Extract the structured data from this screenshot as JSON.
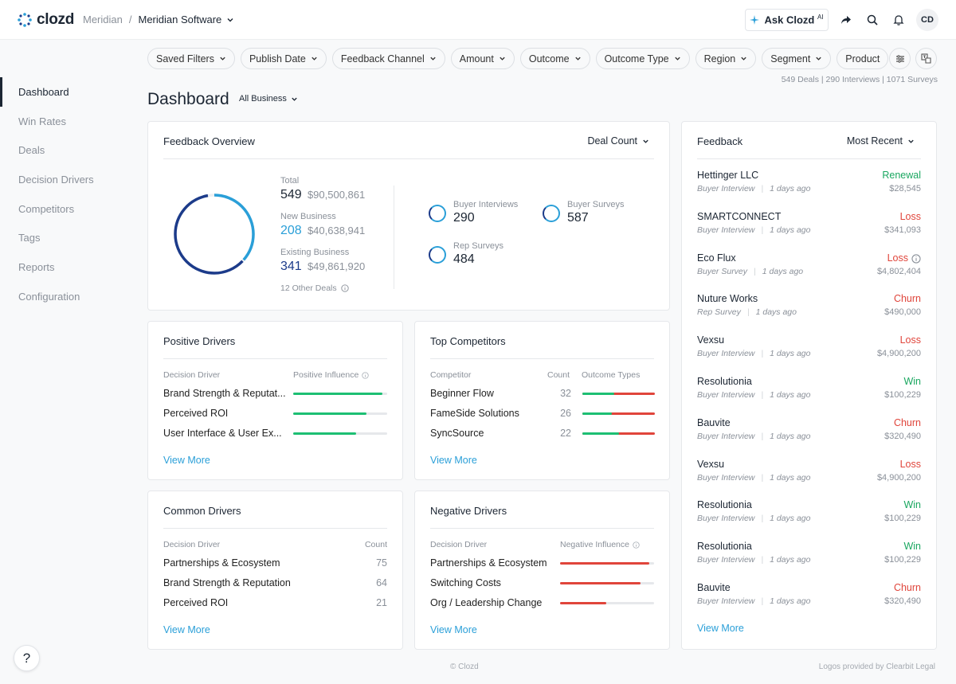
{
  "app": {
    "logo_text": "clozd",
    "breadcrumb_parent": "Meridian",
    "breadcrumb_separator": "/",
    "breadcrumb_current": "Meridian Software",
    "ask_label": "Ask Clozd",
    "ask_badge": "AI",
    "avatar_initials": "CD"
  },
  "sidebar": {
    "items": [
      {
        "label": "Dashboard"
      },
      {
        "label": "Win Rates"
      },
      {
        "label": "Deals"
      },
      {
        "label": "Decision Drivers"
      },
      {
        "label": "Competitors"
      },
      {
        "label": "Tags"
      },
      {
        "label": "Reports"
      },
      {
        "label": "Configuration"
      }
    ]
  },
  "filters": [
    "Saved Filters",
    "Publish Date",
    "Feedback Channel",
    "Amount",
    "Outcome",
    "Outcome Type",
    "Region",
    "Segment",
    "Product"
  ],
  "counts_text": "549 Deals | 290 Interviews | 1071 Surveys",
  "page": {
    "title": "Dashboard",
    "scope": "All Business"
  },
  "overview": {
    "title": "Feedback Overview",
    "metric": "Deal Count",
    "total_label": "Total",
    "total_count": "549",
    "total_amount": "$90,500,861",
    "new_label": "New Business",
    "new_count": "208",
    "new_amount": "$40,638,941",
    "existing_label": "Existing Business",
    "existing_count": "341",
    "existing_amount": "$49,861,920",
    "other": "12 Other Deals",
    "donut": {
      "new_business": 208,
      "existing_business": 341,
      "other": 12
    },
    "channels": [
      {
        "label": "Buyer Interviews",
        "value": "290"
      },
      {
        "label": "Buyer Surveys",
        "value": "587"
      },
      {
        "label": "Rep Surveys",
        "value": "484"
      }
    ]
  },
  "positive": {
    "title": "Positive Drivers",
    "col1": "Decision Driver",
    "col2": "Positive Influence",
    "view_more": "View More",
    "rows": [
      {
        "label": "Brand Strength & Reputat...",
        "fill": 0.95
      },
      {
        "label": "Perceived ROI",
        "fill": 0.78
      },
      {
        "label": "User Interface & User Ex...",
        "fill": 0.67
      }
    ]
  },
  "competitors": {
    "title": "Top Competitors",
    "col1": "Competitor",
    "col2": "Count",
    "col3": "Outcome Types",
    "view_more": "View More",
    "rows": [
      {
        "label": "Beginner Flow",
        "count": "32",
        "win": 0.44
      },
      {
        "label": "FameSide Solutions",
        "count": "26",
        "win": 0.41
      },
      {
        "label": "SyncSource",
        "count": "22",
        "win": 0.5
      }
    ]
  },
  "common": {
    "title": "Common Drivers",
    "col1": "Decision Driver",
    "col2": "Count",
    "view_more": "View More",
    "rows": [
      {
        "label": "Partnerships & Ecosystem",
        "count": "75"
      },
      {
        "label": "Brand Strength & Reputation",
        "count": "64"
      },
      {
        "label": "Perceived ROI",
        "count": "21"
      }
    ]
  },
  "negative": {
    "title": "Negative Drivers",
    "col1": "Decision Driver",
    "col2": "Negative Influence",
    "view_more": "View More",
    "rows": [
      {
        "label": "Partnerships & Ecosystem",
        "fill": 0.95
      },
      {
        "label": "Switching Costs",
        "fill": 0.86
      },
      {
        "label": "Org / Leadership Change",
        "fill": 0.49
      }
    ]
  },
  "feedback": {
    "title": "Feedback",
    "sort": "Most Recent",
    "view_more": "View More",
    "items": [
      {
        "name": "Hettinger LLC",
        "type": "Buyer Interview",
        "age": "1 days ago",
        "outcome": "Renewal",
        "amount": "$28,545",
        "color": "#1aa760"
      },
      {
        "name": "SMARTCONNECT",
        "type": "Buyer Interview",
        "age": "1 days ago",
        "outcome": "Loss",
        "amount": "$341,093",
        "color": "#e0453b"
      },
      {
        "name": "Eco Flux",
        "type": "Buyer Survey",
        "age": "1 days ago",
        "outcome": "Loss",
        "amount": "$4,802,404",
        "color": "#e0453b"
      },
      {
        "name": "Nuture Works",
        "type": "Rep Survey",
        "age": "1 days ago",
        "outcome": "Churn",
        "amount": "$490,000",
        "color": "#e0453b"
      },
      {
        "name": "Vexsu",
        "type": "Buyer Interview",
        "age": "1 days ago",
        "outcome": "Loss",
        "amount": "$4,900,200",
        "color": "#e0453b"
      },
      {
        "name": "Resolutionia",
        "type": "Buyer Interview",
        "age": "1 days ago",
        "outcome": "Win",
        "amount": "$100,229",
        "color": "#1aa760"
      },
      {
        "name": "Bauvite",
        "type": "Buyer Interview",
        "age": "1 days ago",
        "outcome": "Churn",
        "amount": "$320,490",
        "color": "#e0453b"
      },
      {
        "name": "Vexsu",
        "type": "Buyer Interview",
        "age": "1 days ago",
        "outcome": "Loss",
        "amount": "$4,900,200",
        "color": "#e0453b"
      },
      {
        "name": "Resolutionia",
        "type": "Buyer Interview",
        "age": "1 days ago",
        "outcome": "Win",
        "amount": "$100,229",
        "color": "#1aa760"
      },
      {
        "name": "Resolutionia",
        "type": "Buyer Interview",
        "age": "1 days ago",
        "outcome": "Win",
        "amount": "$100,229",
        "color": "#1aa760"
      },
      {
        "name": "Bauvite",
        "type": "Buyer Interview",
        "age": "1 days ago",
        "outcome": "Churn",
        "amount": "$320,490",
        "color": "#e0453b"
      }
    ]
  },
  "footer": {
    "left": "© Clozd",
    "right": "Logos provided by Clearbit   Legal"
  },
  "colors": {
    "accent": "#2a9fd8",
    "navy": "#1c3b8a",
    "green": "#1aa760",
    "red": "#e0453b"
  }
}
